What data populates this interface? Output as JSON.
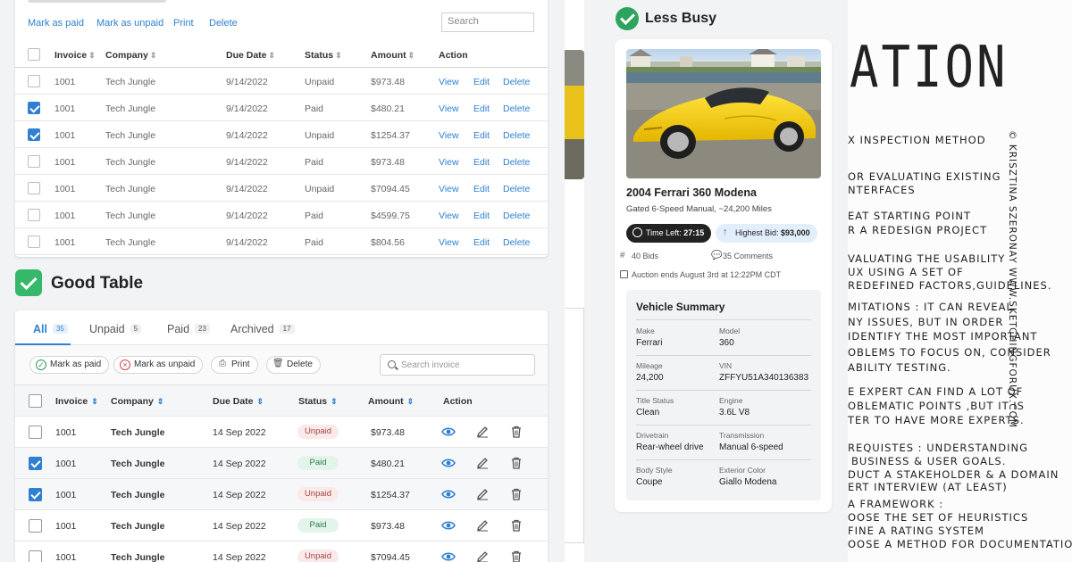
{
  "bad_table": {
    "actions": [
      "Mark as paid",
      "Mark as unpaid",
      "Print",
      "Delete"
    ],
    "search_placeholder": "Search",
    "headers": {
      "invoice": "Invoice",
      "company": "Company",
      "due_date": "Due Date",
      "status": "Status",
      "amount": "Amount",
      "action": "Action"
    },
    "row_actions": {
      "view": "View",
      "edit": "Edit",
      "delete": "Delete"
    },
    "rows": [
      {
        "invoice": "1001",
        "company": "Tech Jungle",
        "due": "9/14/2022",
        "status": "Unpaid",
        "amount": "$973.48",
        "checked": false
      },
      {
        "invoice": "1001",
        "company": "Tech Jungle",
        "due": "9/14/2022",
        "status": "Paid",
        "amount": "$480.21",
        "checked": true
      },
      {
        "invoice": "1001",
        "company": "Tech Jungle",
        "due": "9/14/2022",
        "status": "Unpaid",
        "amount": "$1254.37",
        "checked": true
      },
      {
        "invoice": "1001",
        "company": "Tech Jungle",
        "due": "9/14/2022",
        "status": "Paid",
        "amount": "$973.48",
        "checked": false
      },
      {
        "invoice": "1001",
        "company": "Tech Jungle",
        "due": "9/14/2022",
        "status": "Unpaid",
        "amount": "$7094.45",
        "checked": false
      },
      {
        "invoice": "1001",
        "company": "Tech Jungle",
        "due": "9/14/2022",
        "status": "Paid",
        "amount": "$4599.75",
        "checked": false
      },
      {
        "invoice": "1001",
        "company": "Tech Jungle",
        "due": "9/14/2022",
        "status": "Paid",
        "amount": "$804.56",
        "checked": false
      }
    ]
  },
  "good_table": {
    "heading": "Good Table",
    "tabs": [
      {
        "label": "All",
        "count": "35"
      },
      {
        "label": "Unpaid",
        "count": "5"
      },
      {
        "label": "Paid",
        "count": "23"
      },
      {
        "label": "Archived",
        "count": "17"
      }
    ],
    "actions": {
      "mark_paid": "Mark as paid",
      "mark_unpaid": "Mark as unpaid",
      "print": "Print",
      "delete": "Delete"
    },
    "search_placeholder": "Search invoice",
    "headers": {
      "invoice": "Invoice",
      "company": "Company",
      "due_date": "Due Date",
      "status": "Status",
      "amount": "Amount",
      "action": "Action"
    },
    "rows": [
      {
        "invoice": "1001",
        "company": "Tech Jungle",
        "due": "14 Sep 2022",
        "status": "Unpaid",
        "amount": "$973.48",
        "checked": false
      },
      {
        "invoice": "1001",
        "company": "Tech Jungle",
        "due": "14 Sep 2022",
        "status": "Paid",
        "amount": "$480.21",
        "checked": true
      },
      {
        "invoice": "1001",
        "company": "Tech Jungle",
        "due": "14 Sep 2022",
        "status": "Unpaid",
        "amount": "$1254.37",
        "checked": true
      },
      {
        "invoice": "1001",
        "company": "Tech Jungle",
        "due": "14 Sep 2022",
        "status": "Paid",
        "amount": "$973.48",
        "checked": false
      },
      {
        "invoice": "1001",
        "company": "Tech Jungle",
        "due": "14 Sep 2022",
        "status": "Unpaid",
        "amount": "$7094.45",
        "checked": false
      }
    ]
  },
  "car": {
    "heading": "Less Busy",
    "title": "2004 Ferrari 360 Modena",
    "subtitle": "Gated 6-Speed Manual, ~24,200 Miles",
    "time_left_label": "Time Left:",
    "time_left_value": "27:15",
    "highest_bid_label": "Highest Bid:",
    "highest_bid_value": "$93,000",
    "bids": "40 Bids",
    "comments": "35 Comments",
    "auction_end": "Auction ends August 3rd at 12:22PM CDT",
    "summary_title": "Vehicle Summary",
    "summary": [
      {
        "label": "Make",
        "value": "Ferrari"
      },
      {
        "label": "Model",
        "value": "360"
      },
      {
        "label": "Mileage",
        "value": "24,200"
      },
      {
        "label": "VIN",
        "value": "ZFFYU51A340136383"
      },
      {
        "label": "Title Status",
        "value": "Clean"
      },
      {
        "label": "Engine",
        "value": "3.6L V8"
      },
      {
        "label": "Drivetrain",
        "value": "Rear-wheel drive"
      },
      {
        "label": "Transmission",
        "value": "Manual 6-speed"
      },
      {
        "label": "Body Style",
        "value": "Coupe"
      },
      {
        "label": "Exterior Color",
        "value": "Giallo Modena"
      }
    ]
  },
  "notes": {
    "title": "ATION",
    "credit": "© KRISZTINA SZERONAY WWW.SKETCHINGFORUX.COM",
    "lines": [
      "X INSPECTION METHOD",
      "OR EVALUATING EXISTING",
      "NTERFACES",
      "EAT STARTING POINT",
      "R A REDESIGN PROJECT",
      "VALUATING THE USABILITY",
      "UX USING A SET OF",
      "REDEFINED FACTORS,GUIDELINES.",
      "MITATIONS : IT CAN REVEAL",
      "NY ISSUES, BUT IN ORDER",
      "IDENTIFY THE MOST IMPORTANT",
      "OBLEMS TO FOCUS ON, CONSIDER",
      "ABILITY TESTING.",
      "E EXPERT CAN FIND A LOT OF",
      "OBLEMATIC POINTS ,BUT IT IS",
      "TER TO HAVE MORE EXPERTS.",
      "REQUISTES : UNDERSTANDING",
      "BUSINESS & USER GOALS.",
      "DUCT A STAKEHOLDER & A DOMAIN",
      "ERT INTERVIEW (AT LEAST)",
      "A FRAMEWORK :",
      "OOSE THE SET OF HEURISTICS",
      "FINE A RATING SYSTEM",
      "OOSE A METHOD FOR DOCUMENTATION"
    ]
  },
  "colors": {
    "accent": "#2f80d0",
    "success": "#35b86a",
    "unpaid_bg": "#fbeaea",
    "paid_bg": "#e3f4ea"
  }
}
